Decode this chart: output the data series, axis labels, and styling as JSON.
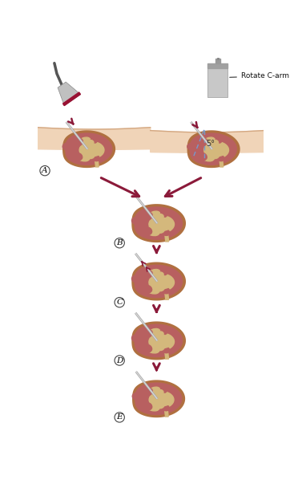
{
  "bg_color": "#ffffff",
  "skin_color": "#f0d4b8",
  "skin_edge_color": "#d4a882",
  "kidney_outline_color": "#b07040",
  "kidney_cortex_color": "#c07858",
  "kidney_medulla_color": "#b86060",
  "kidney_pelvis_color": "#d4b87c",
  "needle_color_dark": "#888888",
  "needle_color_light": "#cccccc",
  "arrow_color": "#8b1a3a",
  "dashed_color": "#7799cc",
  "label_color": "#222222",
  "probe_color": "#c0c0c0",
  "probe_dark": "#909090",
  "probe_red": "#991133",
  "carm_color": "#c8c8c8",
  "carm_dark": "#a0a0a0",
  "rotate_label": "Rotate C-arm",
  "angle_label": "5°",
  "panels": [
    "A",
    "B",
    "C",
    "D",
    "E"
  ]
}
